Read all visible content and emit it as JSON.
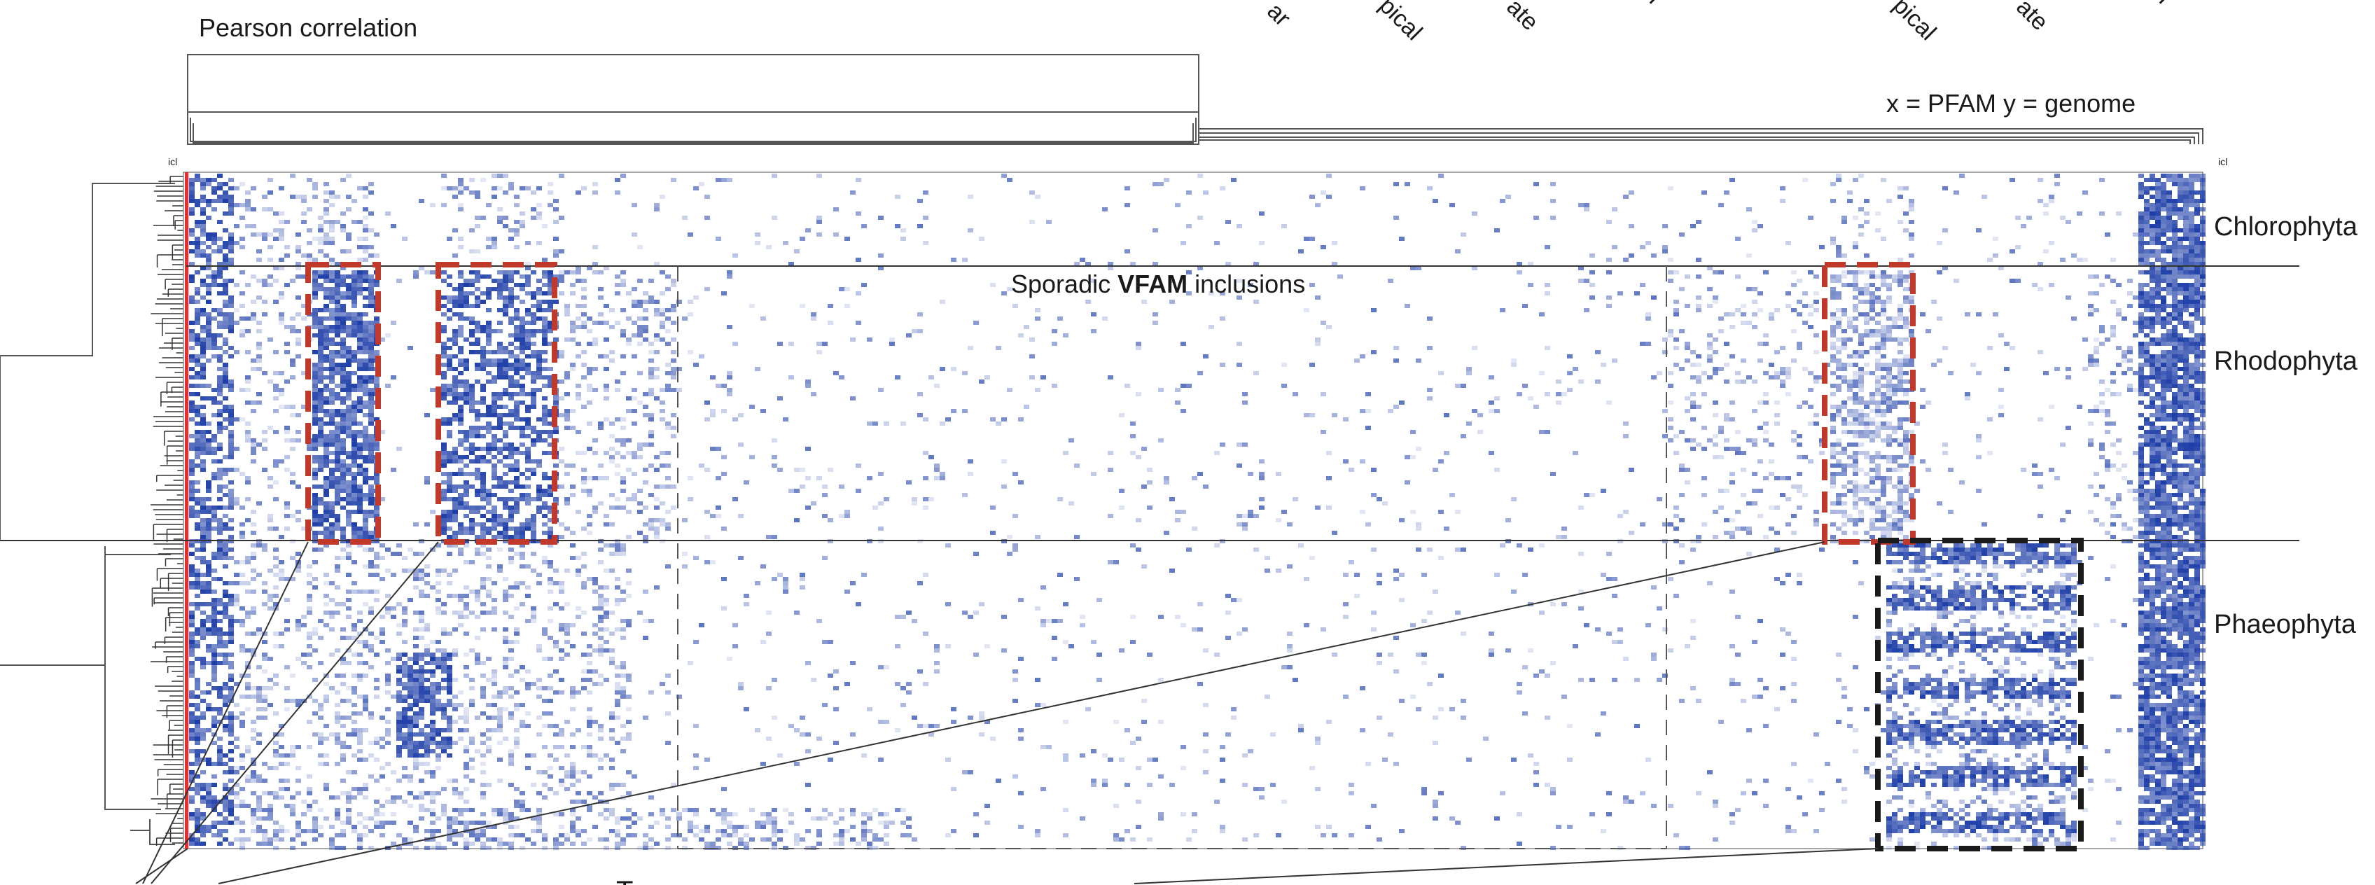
{
  "chart_data": {
    "type": "heatmap",
    "title": "Pearson correlation",
    "axis_note": "x = PFAM y = genome",
    "top_category_fragments": [
      "ar",
      "pical",
      "ate",
      "l",
      "pical",
      "ate",
      "l"
    ],
    "tree_tip_marks": [
      "icl",
      "icl"
    ],
    "groups": [
      "Chlorophyta",
      "Rhodophyta",
      "Phaeophyta"
    ],
    "annotation": {
      "plain": "Sporadic ",
      "bold": "VFAM",
      "tail": " inclusions"
    },
    "bottom_fragment": "T",
    "colors": {
      "cell": "#1f3fa8",
      "highlight_box": "#c0392b",
      "phaeo_box": "#1a1a1a",
      "tip_bar": "#e03030",
      "divider": "#333333"
    }
  }
}
